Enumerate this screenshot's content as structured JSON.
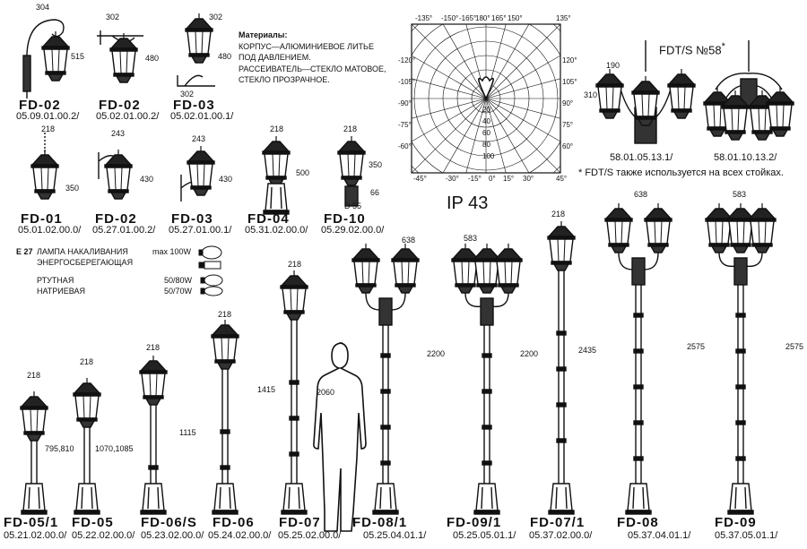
{
  "materials": {
    "title": "Материалы:",
    "lines": [
      "КОРПУС—АЛЮМИНИЕВОЕ ЛИТЬЕ",
      "ПОД ДАВЛЕНИЕМ.",
      "РАССЕИВАТЕЛЬ—СТЕКЛО МАТОВОЕ,",
      "СТЕКЛО ПРОЗРАЧНОЕ."
    ]
  },
  "ip_rating": "IP 43",
  "fdts": {
    "title": "FDT/S",
    "number": "№58",
    "star": "*",
    "codes": [
      "58.01.05.13.1/",
      "58.01.10.13.2/"
    ],
    "footnote": "* FDT/S также используется на всех стойках.",
    "dims": [
      "190",
      "310"
    ]
  },
  "lamps": {
    "socket": "E 27",
    "rows": [
      {
        "name": "ЛАМПА НАКАЛИВАНИЯ",
        "power": "max 100W"
      },
      {
        "name": "ЭНЕРГОСБЕРЕГАЮЩАЯ",
        "power": ""
      },
      {
        "name": "РТУТНАЯ",
        "power": "50/80W"
      },
      {
        "name": "НАТРИЕВАЯ",
        "power": "50/70W"
      }
    ]
  },
  "polar": {
    "top": [
      "-135°",
      "-150°",
      "-165°",
      "180°",
      "165°",
      "150°",
      "135°"
    ],
    "left": [
      "-120°",
      "-105°",
      "-90°",
      "-75°",
      "-60°"
    ],
    "right": [
      "120°",
      "105°",
      "90°",
      "75°",
      "60°"
    ],
    "bottom": [
      "-45°",
      "-30°",
      "-15°",
      "0°",
      "15°",
      "30°",
      "45°"
    ],
    "rings": [
      "20",
      "40",
      "60",
      "80",
      "100"
    ]
  },
  "wall_row": [
    {
      "model": "FD-02",
      "code": "05.09.01.00.2/",
      "w": "304",
      "h": "515"
    },
    {
      "model": "FD-02",
      "code": "05.02.01.00.2/",
      "w": "302",
      "h": "480"
    },
    {
      "model": "FD-03",
      "code": "05.02.01.00.1/",
      "w": "302",
      "h": "480"
    }
  ],
  "mid_row": [
    {
      "model": "FD-01",
      "code": "05.01.02.00.0/",
      "w": "218",
      "h": "350"
    },
    {
      "model": "FD-02",
      "code": "05.27.01.00.2/",
      "w": "243",
      "h": "430"
    },
    {
      "model": "FD-03",
      "code": "05.27.01.00.1/",
      "w": "243",
      "h": "430"
    },
    {
      "model": "FD-04",
      "code": "05.31.02.00.0/",
      "w": "218",
      "h": "500"
    },
    {
      "model": "FD-10",
      "code": "05.29.02.00.0/",
      "w": "218",
      "h": "350",
      "extra": "66",
      "d": "D 55"
    }
  ],
  "poles": [
    {
      "model": "FD-05/1",
      "code": "05.21.02.00.0/",
      "w": "218",
      "h": "795,810"
    },
    {
      "model": "FD-05",
      "code": "05.22.02.00.0/",
      "w": "218",
      "h": "1070,1085"
    },
    {
      "model": "FD-06/S",
      "code": "05.23.02.00.0/",
      "w": "218",
      "h": "1115"
    },
    {
      "model": "FD-06",
      "code": "05.24.02.00.0/",
      "w": "218",
      "h": "1415"
    },
    {
      "model": "FD-07",
      "code": "05.25.02.00.0/",
      "w": "218",
      "h": ""
    },
    {
      "model": "FD-08/1",
      "code": "05.25.04.01.1/",
      "w": "638",
      "h": "2200"
    },
    {
      "model": "FD-09/1",
      "code": "05.25.05.01.1/",
      "w": "583",
      "h": "2200"
    },
    {
      "model": "FD-07/1",
      "code": "05.37.02.00.0/",
      "w": "218",
      "h": "2435"
    },
    {
      "model": "FD-08",
      "code": "05.37.04.01.1/",
      "w": "638",
      "h": "2575"
    },
    {
      "model": "FD-09",
      "code": "05.37.05.01.1/",
      "w": "583",
      "h": "2575"
    }
  ],
  "human_height": "2060"
}
